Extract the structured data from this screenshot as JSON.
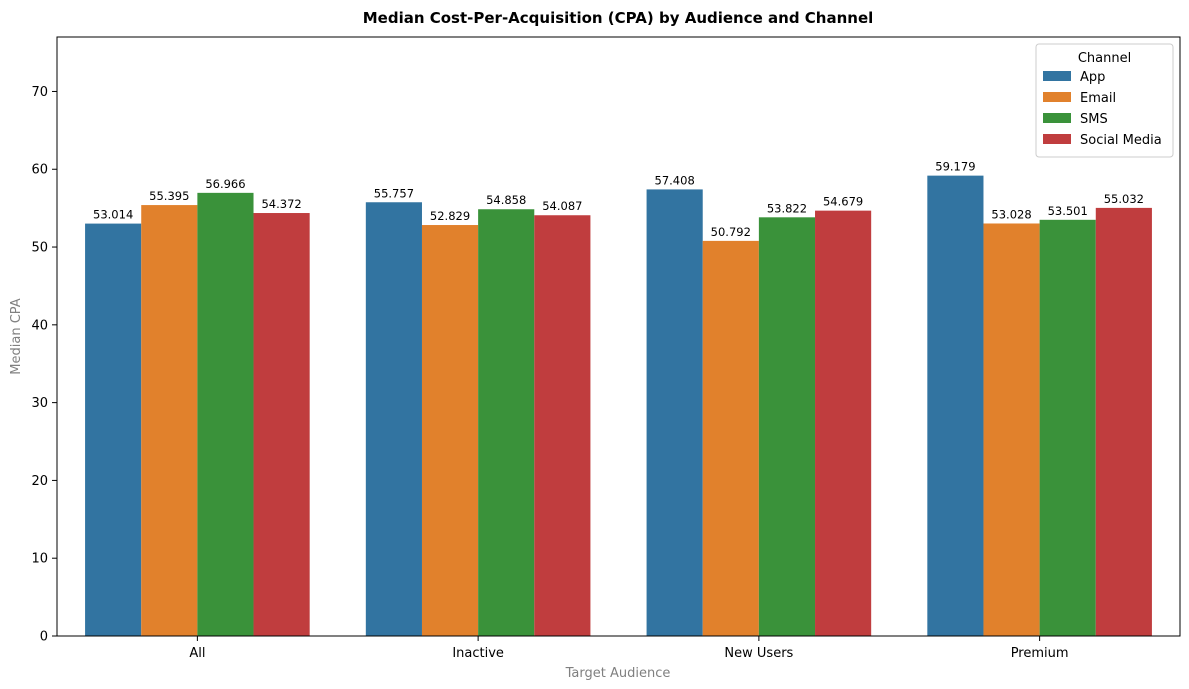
{
  "chart_data": {
    "type": "bar",
    "title": "Median Cost-Per-Acquisition (CPA) by Audience and Channel",
    "xlabel": "Target Audience",
    "ylabel": "Median CPA",
    "categories": [
      "All",
      "Inactive",
      "New Users",
      "Premium"
    ],
    "ylim": [
      0,
      77
    ],
    "yticks": [
      0,
      10,
      20,
      30,
      40,
      50,
      60,
      70
    ],
    "grid": false,
    "legend": {
      "title": "Channel",
      "placement": "top-right"
    },
    "series": [
      {
        "name": "App",
        "color": "#3274a1",
        "values": [
          53.014,
          55.757,
          57.408,
          59.179
        ],
        "labels": [
          "53.014",
          "55.757",
          "57.408",
          "59.179"
        ]
      },
      {
        "name": "Email",
        "color": "#e1812c",
        "values": [
          55.395,
          52.829,
          50.792,
          53.028
        ],
        "labels": [
          "55.395",
          "52.829",
          "50.792",
          "53.028"
        ]
      },
      {
        "name": "SMS",
        "color": "#3a923a",
        "values": [
          56.966,
          54.858,
          53.822,
          53.501
        ],
        "labels": [
          "56.966",
          "54.858",
          "53.822",
          "53.501"
        ]
      },
      {
        "name": "Social Media",
        "color": "#c03d3e",
        "values": [
          54.372,
          54.087,
          54.679,
          55.032
        ],
        "labels": [
          "54.372",
          "54.087",
          "54.679",
          "55.032"
        ]
      }
    ]
  }
}
